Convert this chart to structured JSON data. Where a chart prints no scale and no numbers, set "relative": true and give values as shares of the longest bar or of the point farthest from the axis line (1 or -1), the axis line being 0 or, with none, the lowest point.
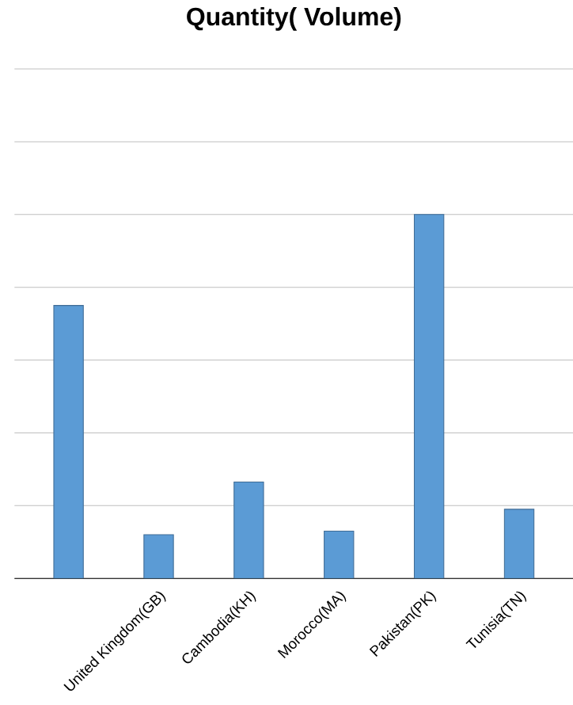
{
  "chart_data": {
    "type": "bar",
    "title": "Quantity( Volume)",
    "categories": [
      null,
      "United Kingdom(GB)",
      "Cambodia(KH)",
      "Morocco(MA)",
      "Pakistan(PK)",
      "Tunisia(TN)"
    ],
    "values": [
      0.75,
      0.12,
      0.265,
      0.13,
      1,
      0.19
    ],
    "color": "#5b9bd5",
    "relative": true,
    "grid": "y"
  }
}
